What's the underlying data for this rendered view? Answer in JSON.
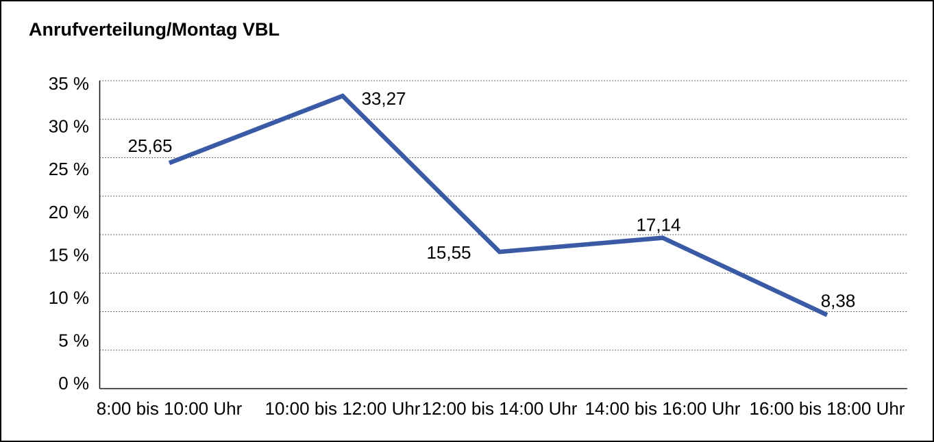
{
  "chart_data": {
    "type": "line",
    "title": "Anrufverteilung/Montag VBL",
    "categories": [
      "8:00 bis 10:00 Uhr",
      "10:00 bis 12:00 Uhr",
      "12:00 bis 14:00 Uhr",
      "14:00 bis 16:00 Uhr",
      "16:00 bis 18:00 Uhr"
    ],
    "values": [
      25.65,
      33.27,
      15.55,
      17.14,
      8.38
    ],
    "point_labels": [
      "25,65",
      "33,27",
      "15,55",
      "17,14",
      "8,38"
    ],
    "ytick_labels": [
      "35 %",
      "30 %",
      "25 %",
      "20 %",
      "15 %",
      "10 %",
      "5 %",
      "0 %"
    ],
    "ylim": [
      0,
      35
    ],
    "xlabel": "",
    "ylabel": "",
    "grid": "horizontal-dotted",
    "legend": "none",
    "line_color": "#3A5AA6",
    "grid_color": "#3C3C3C",
    "axis_color": "#1A1A1A",
    "text_color": "#000000",
    "background": "#FFFFFF"
  }
}
